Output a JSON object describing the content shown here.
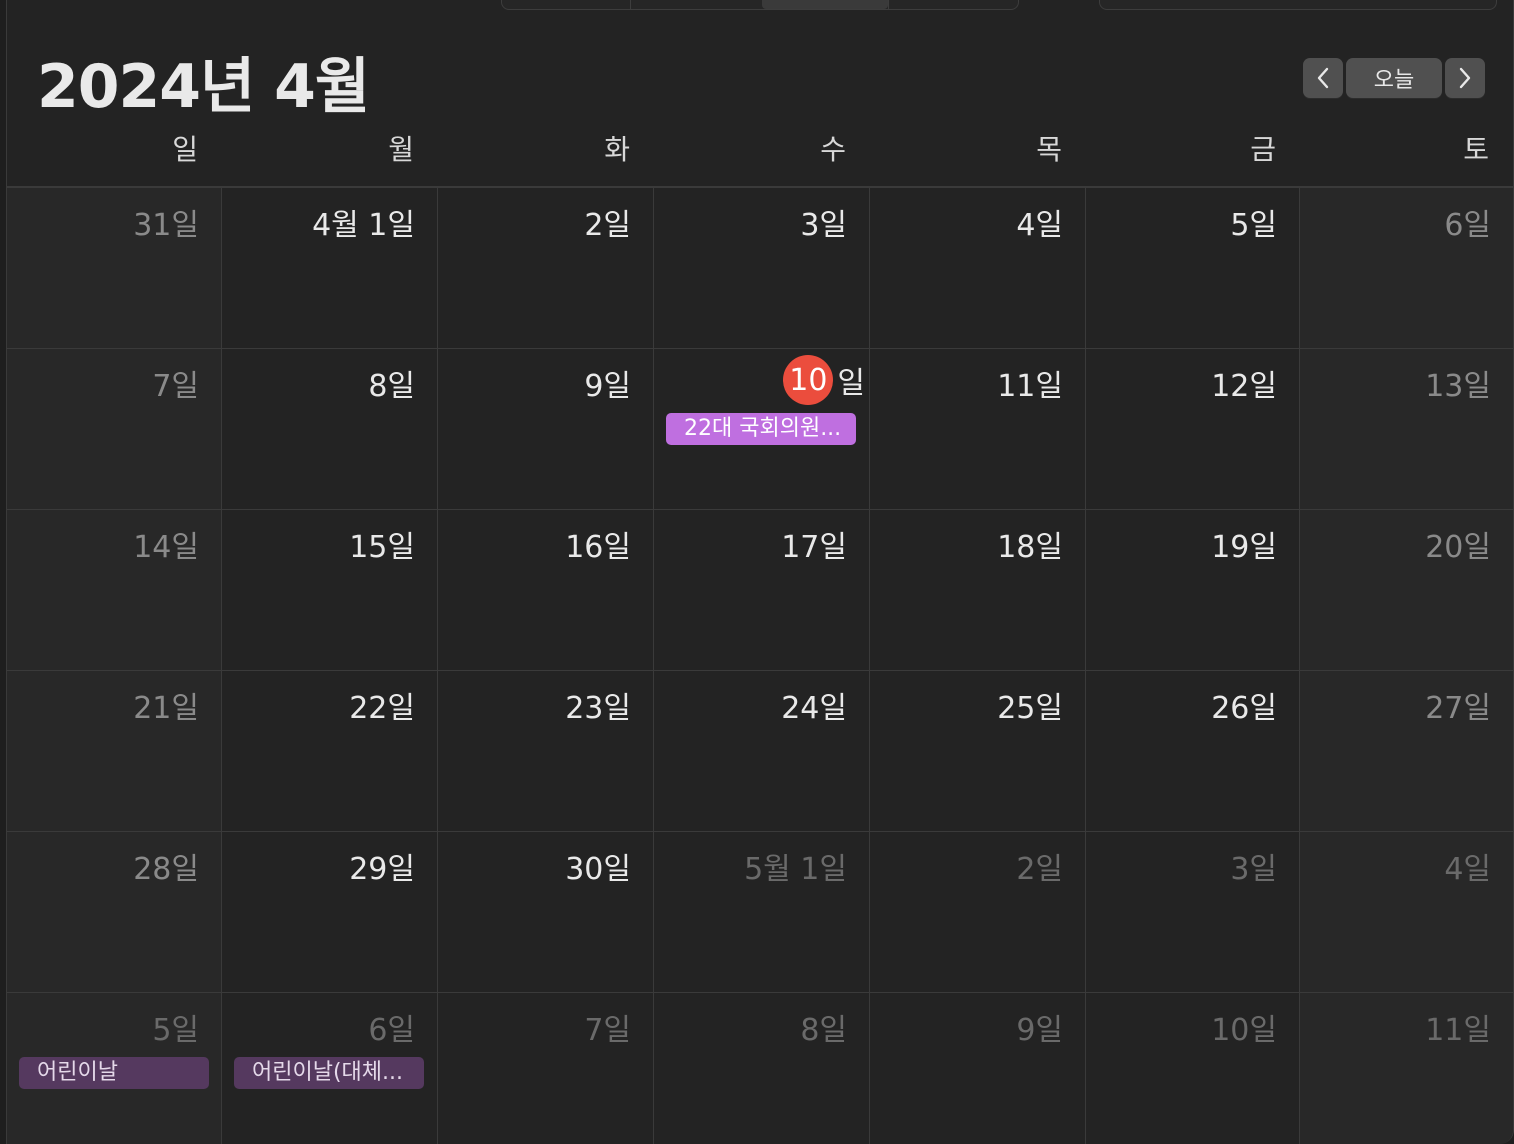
{
  "header": {
    "title": "2024년 4월",
    "today_button": "오늘",
    "prev_icon": "chevron-left-icon",
    "next_icon": "chevron-right-icon"
  },
  "weekdays": [
    "일",
    "월",
    "화",
    "수",
    "목",
    "금",
    "토"
  ],
  "colors": {
    "today_circle": "#eb4d3d",
    "event_election": "#bf6fe0",
    "event_holiday": "#55395f"
  },
  "weeks": [
    [
      {
        "label": "31일",
        "state": "muted"
      },
      {
        "label": "4월 1일",
        "state": "normal"
      },
      {
        "label": "2일",
        "state": "normal"
      },
      {
        "label": "3일",
        "state": "normal"
      },
      {
        "label": "4일",
        "state": "normal"
      },
      {
        "label": "5일",
        "state": "normal"
      },
      {
        "label": "6일",
        "state": "muted"
      }
    ],
    [
      {
        "label": "7일",
        "state": "muted"
      },
      {
        "label": "8일",
        "state": "normal"
      },
      {
        "label": "9일",
        "state": "normal"
      },
      {
        "label": "일",
        "today_number": "10",
        "state": "today",
        "events": [
          {
            "title": "22대 국회의원...",
            "style": "vivid"
          }
        ]
      },
      {
        "label": "11일",
        "state": "normal"
      },
      {
        "label": "12일",
        "state": "normal"
      },
      {
        "label": "13일",
        "state": "muted"
      }
    ],
    [
      {
        "label": "14일",
        "state": "muted"
      },
      {
        "label": "15일",
        "state": "normal"
      },
      {
        "label": "16일",
        "state": "normal"
      },
      {
        "label": "17일",
        "state": "normal"
      },
      {
        "label": "18일",
        "state": "normal"
      },
      {
        "label": "19일",
        "state": "normal"
      },
      {
        "label": "20일",
        "state": "muted"
      }
    ],
    [
      {
        "label": "21일",
        "state": "muted"
      },
      {
        "label": "22일",
        "state": "normal"
      },
      {
        "label": "23일",
        "state": "normal"
      },
      {
        "label": "24일",
        "state": "normal"
      },
      {
        "label": "25일",
        "state": "normal"
      },
      {
        "label": "26일",
        "state": "normal"
      },
      {
        "label": "27일",
        "state": "muted"
      }
    ],
    [
      {
        "label": "28일",
        "state": "muted"
      },
      {
        "label": "29일",
        "state": "normal"
      },
      {
        "label": "30일",
        "state": "normal"
      },
      {
        "label": "5월 1일",
        "state": "out"
      },
      {
        "label": "2일",
        "state": "out"
      },
      {
        "label": "3일",
        "state": "out"
      },
      {
        "label": "4일",
        "state": "out"
      }
    ],
    [
      {
        "label": "5일",
        "state": "out",
        "events": [
          {
            "title": "어린이날",
            "style": "dim"
          }
        ]
      },
      {
        "label": "6일",
        "state": "out",
        "events": [
          {
            "title": "어린이날(대체...",
            "style": "dim"
          }
        ]
      },
      {
        "label": "7일",
        "state": "out"
      },
      {
        "label": "8일",
        "state": "out"
      },
      {
        "label": "9일",
        "state": "out"
      },
      {
        "label": "10일",
        "state": "out"
      },
      {
        "label": "11일",
        "state": "out"
      }
    ]
  ]
}
